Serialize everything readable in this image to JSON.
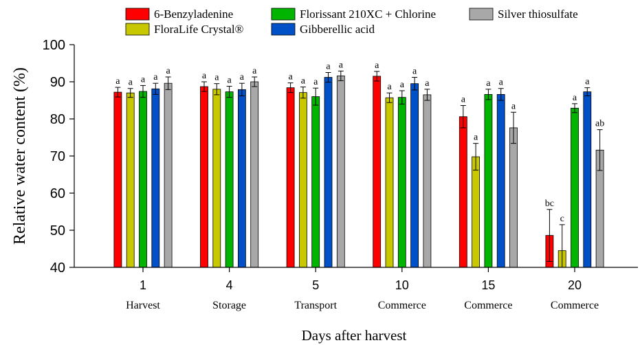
{
  "chart_data": {
    "type": "bar",
    "ylabel": "Relative water content (%)",
    "xlabel": "Days after harvest",
    "ylim": [
      40,
      100
    ],
    "yticks": [
      40,
      50,
      60,
      70,
      80,
      90,
      100
    ],
    "categories": [
      {
        "day": "1",
        "stage": "Harvest"
      },
      {
        "day": "4",
        "stage": "Storage"
      },
      {
        "day": "5",
        "stage": "Transport"
      },
      {
        "day": "10",
        "stage": "Commerce"
      },
      {
        "day": "15",
        "stage": "Commerce"
      },
      {
        "day": "20",
        "stage": "Commerce"
      }
    ],
    "legend_position": "top",
    "series": [
      {
        "name": "6-Benzyladenine",
        "color": "#ff0000",
        "values": [
          87.2,
          88.7,
          88.4,
          91.5,
          80.6,
          48.6
        ],
        "errors": [
          1.3,
          1.3,
          1.3,
          1.3,
          3.0,
          7.0
        ],
        "letters": [
          "a",
          "a",
          "a",
          "a",
          "a",
          "bc"
        ]
      },
      {
        "name": "FloraLife Crystal®",
        "color": "#c8c800",
        "values": [
          87.0,
          88.0,
          87.1,
          85.7,
          69.8,
          44.5
        ],
        "errors": [
          1.2,
          1.5,
          1.5,
          1.3,
          3.6,
          7.0
        ],
        "letters": [
          "a",
          "a",
          "a",
          "a",
          "a",
          "c"
        ]
      },
      {
        "name": "Florissant 210XC + Chlorine",
        "color": "#00b400",
        "values": [
          87.4,
          87.3,
          86.0,
          85.8,
          86.6,
          82.9
        ],
        "errors": [
          1.6,
          1.5,
          2.3,
          1.8,
          1.4,
          1.2
        ],
        "letters": [
          "a",
          "a",
          "a",
          "a",
          "a",
          "a"
        ]
      },
      {
        "name": "Gibberellic acid",
        "color": "#0050c8",
        "values": [
          88.1,
          87.9,
          91.2,
          89.5,
          86.6,
          87.3
        ],
        "errors": [
          1.5,
          1.7,
          1.3,
          1.7,
          1.6,
          1.1
        ],
        "letters": [
          "a",
          "a",
          "a",
          "a",
          "a",
          "a"
        ]
      },
      {
        "name": "Silver thiosulfate",
        "color": "#a8a8a8",
        "values": [
          89.6,
          90.0,
          91.6,
          86.5,
          77.6,
          71.6
        ],
        "errors": [
          1.7,
          1.3,
          1.3,
          1.5,
          4.2,
          5.5
        ],
        "letters": [
          "a",
          "a",
          "a",
          "a",
          "a",
          "ab"
        ]
      }
    ]
  }
}
